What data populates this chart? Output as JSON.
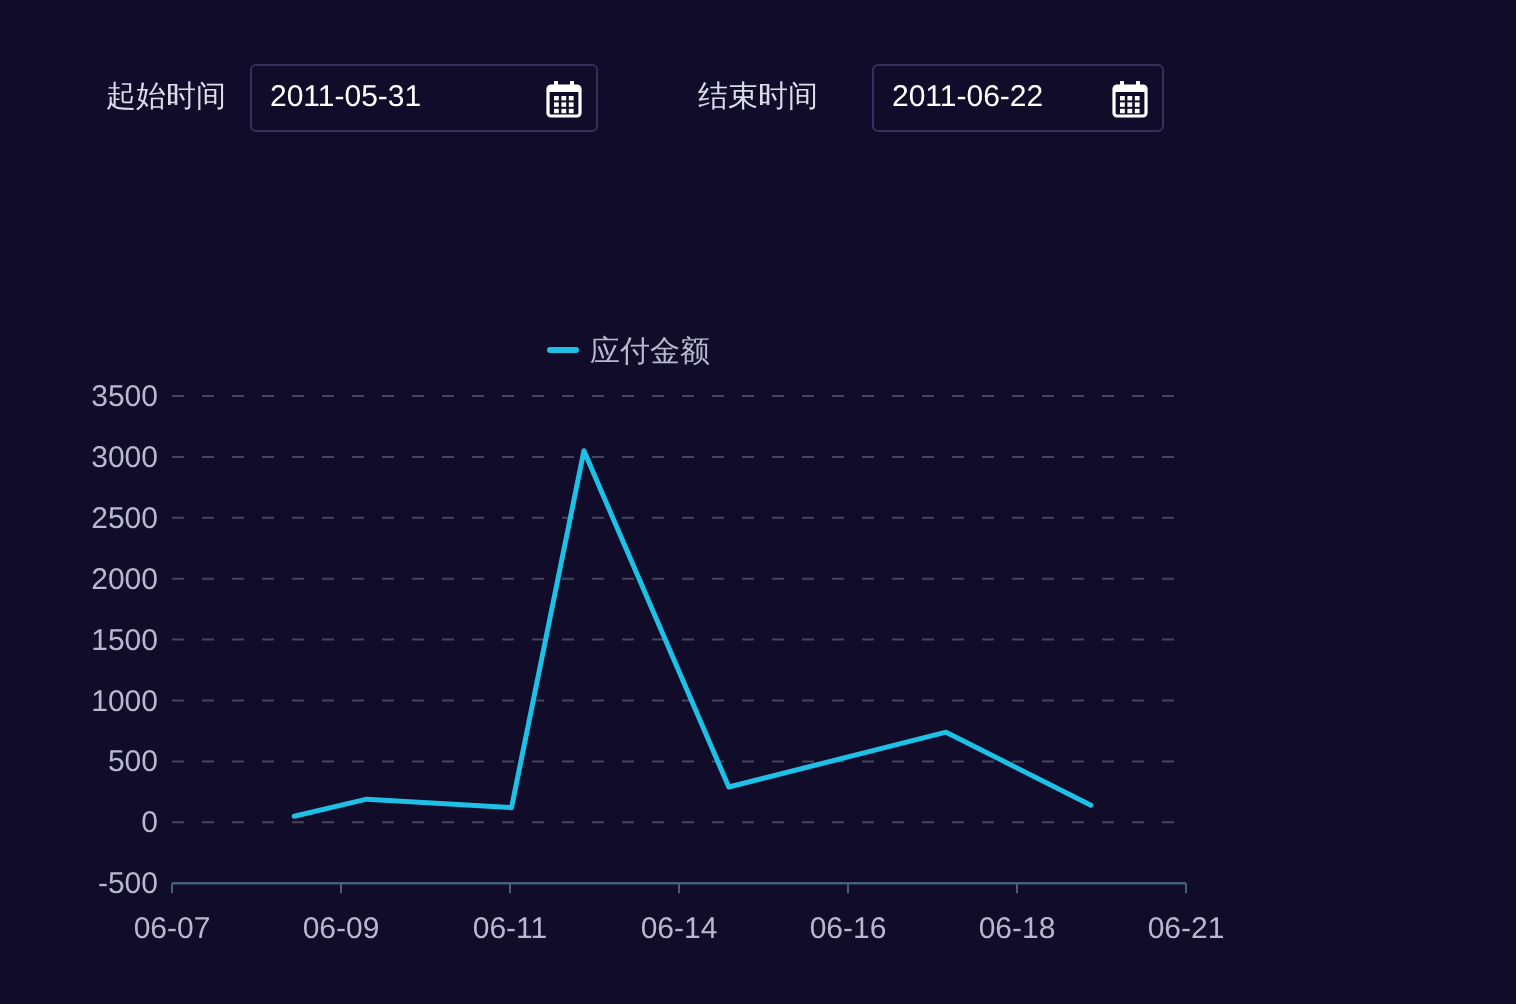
{
  "chart_data": {
    "type": "line",
    "annotations": [
      "起始时间",
      "2011-05-31",
      "结束时间",
      "2011-06-22"
    ],
    "x": [
      "2011-06-08T16:30",
      "2011-06-09T16:30",
      "2011-06-11T16:30",
      "2011-06-12T16:30",
      "2011-06-14T16:30",
      "2011-06-17T16:30",
      "2011-06-19T16:30"
    ],
    "series": [
      {
        "name": "应付金额",
        "color": "#1ec0e6",
        "values": [
          50,
          190,
          120,
          3050,
          290,
          740,
          140
        ]
      }
    ],
    "xlim": [
      "2011-06-07",
      "2011-06-21"
    ],
    "xticks": [
      {
        "value": "2011-06-07",
        "label": "06-07"
      },
      {
        "value": "2011-06-09T08:00",
        "label": "06-09"
      },
      {
        "value": "2011-06-11T16:00",
        "label": "06-11"
      },
      {
        "value": "2011-06-14",
        "label": "06-14"
      },
      {
        "value": "2011-06-16T08:00",
        "label": "06-16"
      },
      {
        "value": "2011-06-18T16:00",
        "label": "06-18"
      },
      {
        "value": "2011-06-21",
        "label": "06-21"
      }
    ],
    "ylim": [
      -500,
      3500
    ],
    "yticks": [
      -500,
      0,
      500,
      1000,
      1500,
      2000,
      2500,
      3000,
      3500
    ],
    "grid": "y",
    "legend": "top"
  }
}
